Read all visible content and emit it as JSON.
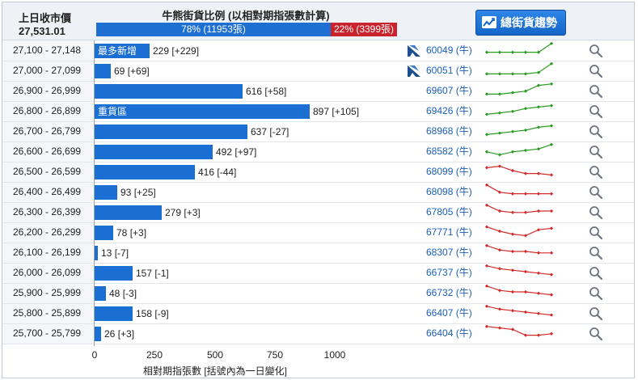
{
  "header": {
    "prev_close_label": "上日收市價",
    "prev_close_value": "27,531.01",
    "ratio_title": "牛熊街貨比例 (以相對期指張數計算)",
    "bull_text": "78% (11953張)",
    "bear_text": "22% (3399張)",
    "bull_pct": 78,
    "trend_button": "總街貨趨勢"
  },
  "colors": {
    "bar": "#1b6fd3",
    "bull": "#2a9b1f",
    "bear": "#d42a2a",
    "ratio_bear": "#c9232e"
  },
  "chart_data": {
    "type": "bar",
    "orientation": "horizontal",
    "xlabel": "相對期指張數 [括號內為一日變化]",
    "xlim": [
      0,
      1000
    ],
    "xticks": [
      "0",
      "250",
      "500",
      "750",
      "1000"
    ],
    "categories": [
      "27,100 - 27,148",
      "27,000 - 27,099",
      "26,900 - 26,999",
      "26,800 - 26,899",
      "26,700 - 26,799",
      "26,600 - 26,699",
      "26,500 - 26,599",
      "26,400 - 26,499",
      "26,300 - 26,399",
      "26,200 - 26,299",
      "26,100 - 26,199",
      "26,000 - 26,099",
      "25,900 - 25,999",
      "25,800 - 25,899",
      "25,700 - 25,799"
    ],
    "values": [
      229,
      69,
      616,
      897,
      637,
      492,
      416,
      93,
      279,
      78,
      13,
      157,
      48,
      158,
      26
    ],
    "changes": [
      "+229",
      "+69",
      "+58",
      "+105",
      "-27",
      "+97",
      "-44",
      "+25",
      "+3",
      "+3",
      "-7",
      "-1",
      "-3",
      "-9",
      "+3"
    ],
    "bar_tags": [
      "最多新增",
      "",
      "",
      "重貨區",
      "",
      "",
      "",
      "",
      "",
      "",
      "",
      "",
      "",
      "",
      ""
    ]
  },
  "rows_meta": [
    {
      "code": "60049 (牛)",
      "type": "bull",
      "warrant_icon": true,
      "spark": [
        3,
        3,
        3,
        3,
        3,
        9
      ]
    },
    {
      "code": "60051 (牛)",
      "type": "bull",
      "warrant_icon": true,
      "spark": [
        2,
        2,
        2,
        2,
        3,
        9
      ]
    },
    {
      "code": "69607 (牛)",
      "type": "bull",
      "warrant_icon": false,
      "spark": [
        2,
        2,
        3,
        4,
        8,
        9
      ]
    },
    {
      "code": "69426 (牛)",
      "type": "bull",
      "warrant_icon": false,
      "spark": [
        2,
        3,
        4,
        6,
        7,
        8
      ]
    },
    {
      "code": "68968 (牛)",
      "type": "bull",
      "warrant_icon": false,
      "spark": [
        2,
        3,
        4,
        5,
        7,
        8
      ]
    },
    {
      "code": "68582 (牛)",
      "type": "bull",
      "warrant_icon": false,
      "spark": [
        4,
        2,
        4,
        5,
        6,
        9
      ]
    },
    {
      "code": "68099 (牛)",
      "type": "bear",
      "warrant_icon": false,
      "spark": [
        7,
        8,
        5,
        3,
        3,
        2
      ]
    },
    {
      "code": "68098 (牛)",
      "type": "bear",
      "warrant_icon": false,
      "spark": [
        9,
        4,
        3,
        3,
        3,
        3
      ]
    },
    {
      "code": "67805 (牛)",
      "type": "bear",
      "warrant_icon": false,
      "spark": [
        9,
        5,
        4,
        4,
        5,
        5
      ]
    },
    {
      "code": "67771 (牛)",
      "type": "bear",
      "warrant_icon": false,
      "spark": [
        8,
        5,
        3,
        2,
        6,
        7
      ]
    },
    {
      "code": "68307 (牛)",
      "type": "bear",
      "warrant_icon": false,
      "spark": [
        9,
        6,
        5,
        5,
        4,
        4
      ]
    },
    {
      "code": "66737 (牛)",
      "type": "bear",
      "warrant_icon": false,
      "spark": [
        9,
        7,
        6,
        5,
        4,
        3
      ]
    },
    {
      "code": "66732 (牛)",
      "type": "bear",
      "warrant_icon": false,
      "spark": [
        9,
        6,
        5,
        5,
        4,
        3
      ]
    },
    {
      "code": "66407 (牛)",
      "type": "bear",
      "warrant_icon": false,
      "spark": [
        9,
        7,
        6,
        5,
        4,
        3
      ]
    },
    {
      "code": "66404 (牛)",
      "type": "bear",
      "warrant_icon": false,
      "spark": [
        9,
        8,
        7,
        3,
        3,
        4
      ]
    }
  ]
}
